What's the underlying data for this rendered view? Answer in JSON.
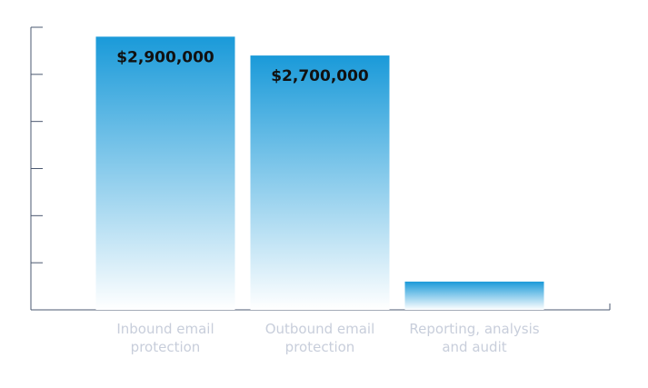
{
  "chart_data": {
    "type": "bar",
    "categories": [
      "Inbound email\nprotection",
      "Outbound email\nprotection",
      "Reporting, analysis\nand audit"
    ],
    "values": [
      2900000,
      2700000,
      300000
    ],
    "data_labels": [
      "$2,900,000",
      "$2,700,000",
      ""
    ],
    "ylim": [
      0,
      3000000
    ],
    "y_ticks": [
      500000,
      1000000,
      1500000,
      2000000,
      2500000,
      3000000
    ],
    "grid": false,
    "colors": {
      "bar_top": "#1a9ad9",
      "bar_bottom": "#ffffff",
      "axis": "#4b5870",
      "label_text": "#111111",
      "category_text": "#c8cedb"
    }
  }
}
